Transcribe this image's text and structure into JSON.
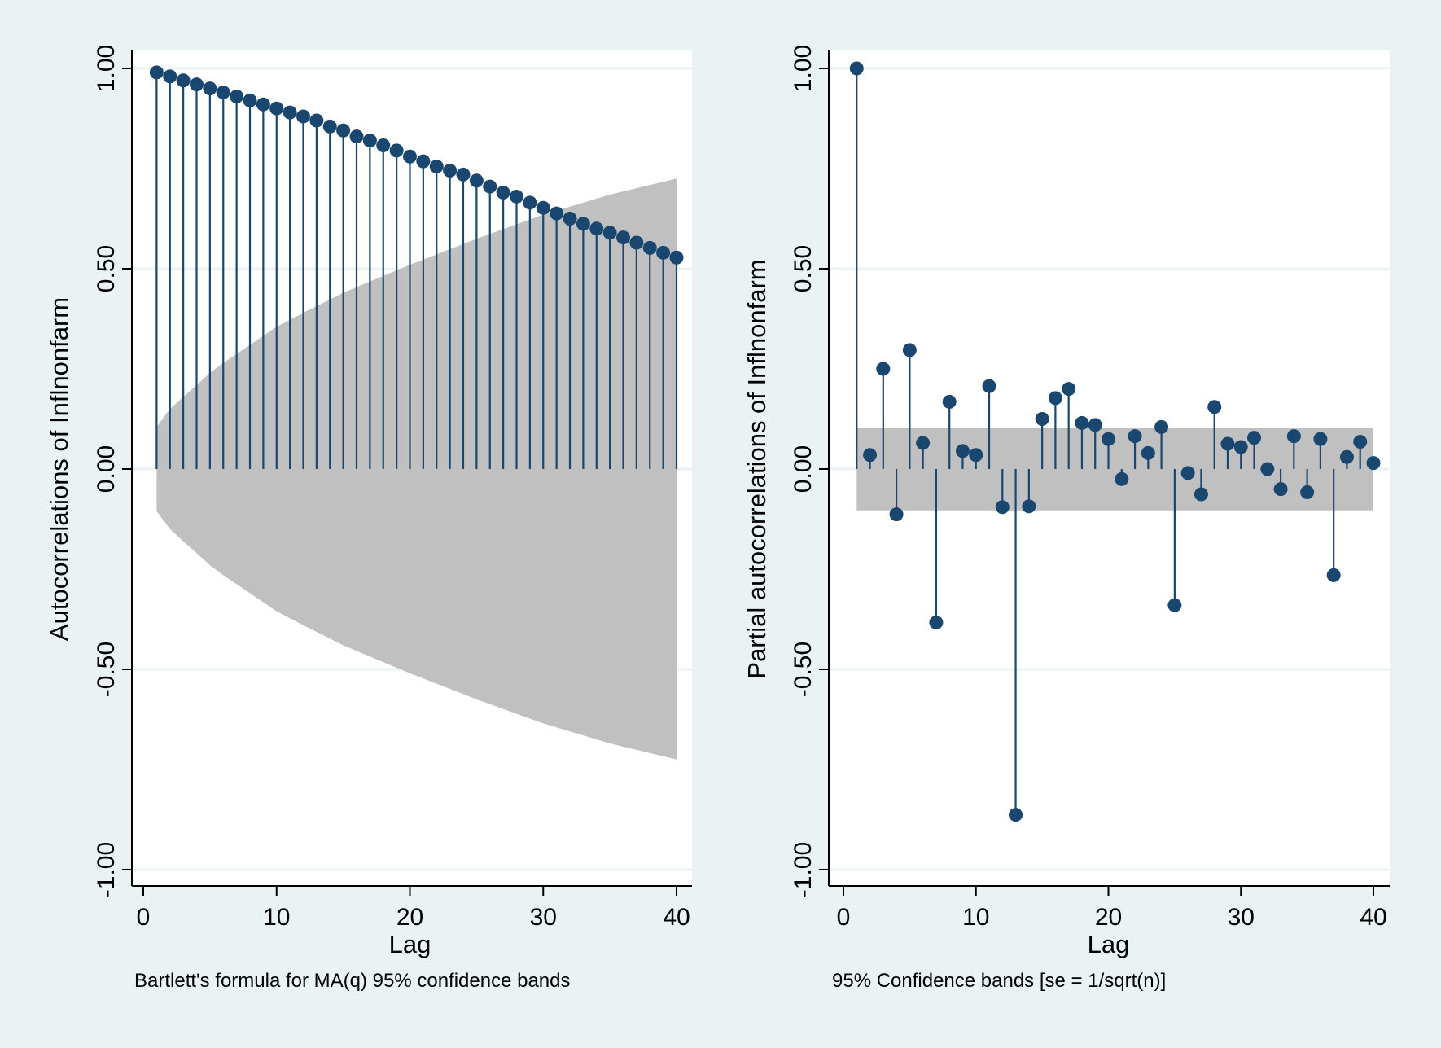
{
  "colors": {
    "background": "#eaf2f3",
    "plot_region": "#ffffff",
    "gridline": "#eaf2f3",
    "marker": "#1a476f",
    "band": "#c0c0c0"
  },
  "chart_data": [
    {
      "type": "stem",
      "ylabel": "Autocorrelations of Inflnonfarm",
      "xlabel": "Lag",
      "note": "Bartlett's formula for MA(q) 95% confidence bands",
      "xlim": [
        0,
        40
      ],
      "ylim": [
        -1,
        1
      ],
      "xticks": [
        0,
        10,
        20,
        30,
        40
      ],
      "xtick_labels": [
        "0",
        "10",
        "20",
        "30",
        "40"
      ],
      "yticks": [
        -1,
        -0.5,
        0,
        0.5,
        1
      ],
      "ytick_labels": [
        "-1.00",
        "-0.50",
        "0.00",
        "0.50",
        "1.00"
      ],
      "grid": true,
      "x": [
        1,
        2,
        3,
        4,
        5,
        6,
        7,
        8,
        9,
        10,
        11,
        12,
        13,
        14,
        15,
        16,
        17,
        18,
        19,
        20,
        21,
        22,
        23,
        24,
        25,
        26,
        27,
        28,
        29,
        30,
        31,
        32,
        33,
        34,
        35,
        36,
        37,
        38,
        39,
        40
      ],
      "values": [
        0.99,
        0.98,
        0.97,
        0.96,
        0.95,
        0.94,
        0.93,
        0.92,
        0.91,
        0.9,
        0.89,
        0.88,
        0.87,
        0.855,
        0.845,
        0.83,
        0.82,
        0.808,
        0.795,
        0.78,
        0.768,
        0.755,
        0.745,
        0.735,
        0.72,
        0.705,
        0.69,
        0.68,
        0.665,
        0.652,
        0.638,
        0.625,
        0.612,
        0.6,
        0.59,
        0.578,
        0.565,
        0.552,
        0.54,
        0.528
      ],
      "band": {
        "x": [
          1,
          2,
          3,
          4,
          5,
          6,
          8,
          10,
          12,
          15,
          20,
          25,
          30,
          35,
          40
        ],
        "upper": [
          0.105,
          0.15,
          0.18,
          0.21,
          0.24,
          0.265,
          0.31,
          0.355,
          0.39,
          0.44,
          0.51,
          0.575,
          0.635,
          0.685,
          0.725
        ],
        "lower": [
          -0.105,
          -0.15,
          -0.18,
          -0.21,
          -0.24,
          -0.265,
          -0.31,
          -0.355,
          -0.39,
          -0.44,
          -0.51,
          -0.575,
          -0.635,
          -0.685,
          -0.725
        ]
      }
    },
    {
      "type": "stem",
      "ylabel": "Partial autocorrelations of Inflnonfarm",
      "xlabel": "Lag",
      "note": "95% Confidence bands [se = 1/sqrt(n)]",
      "xlim": [
        0,
        40
      ],
      "ylim": [
        -1,
        1
      ],
      "xticks": [
        0,
        10,
        20,
        30,
        40
      ],
      "xtick_labels": [
        "0",
        "10",
        "20",
        "30",
        "40"
      ],
      "yticks": [
        -1,
        -0.5,
        0,
        0.5,
        1
      ],
      "ytick_labels": [
        "-1.00",
        "-0.50",
        "0.00",
        "0.50",
        "1.00"
      ],
      "grid": true,
      "x": [
        1,
        2,
        3,
        4,
        5,
        6,
        7,
        8,
        9,
        10,
        11,
        12,
        13,
        14,
        15,
        16,
        17,
        18,
        19,
        20,
        21,
        22,
        23,
        24,
        25,
        26,
        27,
        28,
        29,
        30,
        31,
        32,
        33,
        34,
        35,
        36,
        37,
        38,
        39,
        40
      ],
      "values": [
        1.0,
        0.035,
        0.25,
        -0.113,
        0.297,
        0.065,
        -0.383,
        0.168,
        0.045,
        0.035,
        0.207,
        -0.095,
        -0.863,
        -0.093,
        0.125,
        0.177,
        0.2,
        0.115,
        0.11,
        0.075,
        -0.025,
        0.082,
        0.04,
        0.105,
        -0.34,
        -0.01,
        -0.063,
        0.155,
        0.063,
        0.055,
        0.078,
        0.0,
        -0.05,
        0.082,
        -0.058,
        0.075,
        -0.265,
        0.03,
        0.068,
        0.015
      ],
      "band": {
        "x": [
          1,
          40
        ],
        "upper": [
          0.103,
          0.103
        ],
        "lower": [
          -0.103,
          -0.103
        ]
      }
    }
  ]
}
